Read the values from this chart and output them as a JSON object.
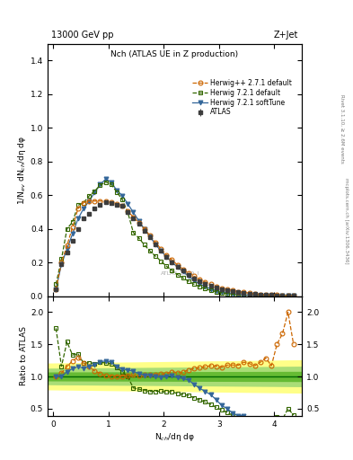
{
  "title_top": "13000 GeV pp",
  "title_right": "Z+Jet",
  "plot_title": "Nch (ATLAS UE in Z production)",
  "right_label1": "Rivet 3.1.10, ≥ 2.6M events",
  "right_label2": "mcplots.cern.ch [arXiv:1306.3436]",
  "watermark": "ATLAS_2019_I",
  "ylabel_main": "1/N$_{ev}$ dN$_{ch}$/dη dφ",
  "ylabel_ratio": "Ratio to ATLAS",
  "xlabel": "N$_{ch}$/dη dφ",
  "xlim": [
    -0.1,
    4.5
  ],
  "ylim_main": [
    0.0,
    1.5
  ],
  "ylim_ratio": [
    0.38,
    2.25
  ],
  "yticks_main": [
    0.0,
    0.2,
    0.4,
    0.6,
    0.8,
    1.0,
    1.2,
    1.4
  ],
  "yticks_ratio": [
    0.5,
    1.0,
    1.5,
    2.0
  ],
  "xticks": [
    0,
    1,
    2,
    3,
    4
  ],
  "atlas_x": [
    0.05,
    0.15,
    0.25,
    0.35,
    0.45,
    0.55,
    0.65,
    0.75,
    0.85,
    0.95,
    1.05,
    1.15,
    1.25,
    1.35,
    1.45,
    1.55,
    1.65,
    1.75,
    1.85,
    1.95,
    2.05,
    2.15,
    2.25,
    2.35,
    2.45,
    2.55,
    2.65,
    2.75,
    2.85,
    2.95,
    3.05,
    3.15,
    3.25,
    3.35,
    3.45,
    3.55,
    3.65,
    3.75,
    3.85,
    3.95,
    4.05,
    4.15,
    4.25,
    4.35
  ],
  "atlas_y": [
    0.04,
    0.19,
    0.26,
    0.33,
    0.4,
    0.46,
    0.49,
    0.52,
    0.54,
    0.56,
    0.555,
    0.545,
    0.535,
    0.5,
    0.46,
    0.43,
    0.39,
    0.35,
    0.31,
    0.27,
    0.235,
    0.2,
    0.175,
    0.15,
    0.125,
    0.105,
    0.088,
    0.073,
    0.06,
    0.05,
    0.042,
    0.034,
    0.028,
    0.023,
    0.018,
    0.015,
    0.012,
    0.009,
    0.007,
    0.006,
    0.004,
    0.003,
    0.002,
    0.002
  ],
  "atlas_yerr": [
    0.003,
    0.005,
    0.005,
    0.005,
    0.005,
    0.005,
    0.005,
    0.005,
    0.005,
    0.005,
    0.005,
    0.005,
    0.005,
    0.005,
    0.005,
    0.004,
    0.004,
    0.004,
    0.003,
    0.003,
    0.003,
    0.003,
    0.003,
    0.002,
    0.002,
    0.002,
    0.002,
    0.001,
    0.001,
    0.001,
    0.001,
    0.001,
    0.001,
    0.001,
    0.001,
    0.001,
    0.001,
    0.0008,
    0.0007,
    0.0006,
    0.0004,
    0.0003,
    0.0002,
    0.0002
  ],
  "herwig_pp_x": [
    0.05,
    0.15,
    0.25,
    0.35,
    0.45,
    0.55,
    0.65,
    0.75,
    0.85,
    0.95,
    1.05,
    1.15,
    1.25,
    1.35,
    1.45,
    1.55,
    1.65,
    1.75,
    1.85,
    1.95,
    2.05,
    2.15,
    2.25,
    2.35,
    2.45,
    2.55,
    2.65,
    2.75,
    2.85,
    2.95,
    3.05,
    3.15,
    3.25,
    3.35,
    3.45,
    3.55,
    3.65,
    3.75,
    3.85,
    3.95,
    4.05,
    4.15,
    4.25,
    4.35
  ],
  "herwig_pp_y": [
    0.04,
    0.2,
    0.3,
    0.41,
    0.52,
    0.555,
    0.565,
    0.565,
    0.565,
    0.565,
    0.558,
    0.548,
    0.538,
    0.505,
    0.47,
    0.435,
    0.4,
    0.36,
    0.32,
    0.28,
    0.245,
    0.215,
    0.185,
    0.16,
    0.138,
    0.118,
    0.1,
    0.084,
    0.07,
    0.058,
    0.048,
    0.04,
    0.033,
    0.027,
    0.022,
    0.018,
    0.014,
    0.011,
    0.009,
    0.007,
    0.006,
    0.005,
    0.004,
    0.003
  ],
  "herwig721_x": [
    0.05,
    0.15,
    0.25,
    0.35,
    0.45,
    0.55,
    0.65,
    0.75,
    0.85,
    0.95,
    1.05,
    1.15,
    1.25,
    1.35,
    1.45,
    1.55,
    1.65,
    1.75,
    1.85,
    1.95,
    2.05,
    2.15,
    2.25,
    2.35,
    2.45,
    2.55,
    2.65,
    2.75,
    2.85,
    2.95,
    3.05,
    3.15,
    3.25,
    3.35,
    3.45,
    3.55,
    3.65,
    3.75,
    3.85,
    3.95,
    4.05,
    4.15,
    4.25,
    4.35
  ],
  "herwig721_y": [
    0.07,
    0.22,
    0.4,
    0.44,
    0.54,
    0.555,
    0.595,
    0.625,
    0.658,
    0.678,
    0.665,
    0.618,
    0.575,
    0.498,
    0.378,
    0.345,
    0.305,
    0.268,
    0.238,
    0.208,
    0.178,
    0.153,
    0.128,
    0.108,
    0.088,
    0.07,
    0.056,
    0.044,
    0.034,
    0.026,
    0.02,
    0.015,
    0.011,
    0.008,
    0.006,
    0.005,
    0.004,
    0.003,
    0.002,
    0.002,
    0.0015,
    0.001,
    0.001,
    0.0008
  ],
  "herwig721soft_x": [
    0.05,
    0.15,
    0.25,
    0.35,
    0.45,
    0.55,
    0.65,
    0.75,
    0.85,
    0.95,
    1.05,
    1.15,
    1.25,
    1.35,
    1.45,
    1.55,
    1.65,
    1.75,
    1.85,
    1.95,
    2.05,
    2.15,
    2.25,
    2.35,
    2.45,
    2.55,
    2.65,
    2.75,
    2.85,
    2.95,
    3.05,
    3.15,
    3.25,
    3.35,
    3.45,
    3.55,
    3.65,
    3.75,
    3.85,
    3.95,
    4.05,
    4.15,
    4.25,
    4.35
  ],
  "herwig721soft_y": [
    0.04,
    0.19,
    0.28,
    0.37,
    0.46,
    0.52,
    0.565,
    0.615,
    0.663,
    0.695,
    0.678,
    0.628,
    0.598,
    0.548,
    0.498,
    0.448,
    0.398,
    0.355,
    0.308,
    0.268,
    0.235,
    0.202,
    0.172,
    0.145,
    0.118,
    0.092,
    0.072,
    0.056,
    0.043,
    0.032,
    0.023,
    0.017,
    0.012,
    0.009,
    0.007,
    0.005,
    0.004,
    0.003,
    0.002,
    0.0015,
    0.001,
    0.001,
    0.0007,
    0.0005
  ],
  "atlas_color": "#3d3d3d",
  "herwig_pp_color": "#cc6600",
  "herwig721_color": "#336600",
  "herwig721soft_color": "#336699",
  "atlas_band_yellow": [
    0.75,
    1.3
  ],
  "atlas_band_green_mid": [
    0.82,
    1.2
  ],
  "atlas_band_green_dark": [
    0.9,
    1.12
  ]
}
